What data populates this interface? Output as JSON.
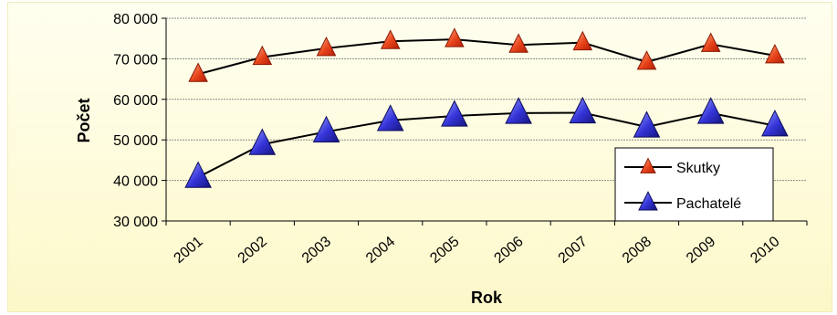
{
  "chart_data": {
    "type": "line",
    "title": "",
    "xlabel": "Rok",
    "ylabel": "Počet",
    "categories": [
      "2001",
      "2002",
      "2003",
      "2004",
      "2005",
      "2006",
      "2007",
      "2008",
      "2009",
      "2010"
    ],
    "ylim": [
      30000,
      80000
    ],
    "y_ticks": [
      30000,
      40000,
      50000,
      60000,
      70000,
      80000
    ],
    "y_tick_labels": [
      "30 000",
      "40 000",
      "50 000",
      "60 000",
      "70 000",
      "80 000"
    ],
    "grid": "horizontal",
    "legend_position": "right",
    "series": [
      {
        "name": "Skutky",
        "color": "#d62c0c",
        "marker": "triangle",
        "values": [
          66200,
          70400,
          72600,
          74300,
          74800,
          73400,
          74000,
          69200,
          73600,
          70800
        ]
      },
      {
        "name": "Pachatelé",
        "color": "#1f1fa8",
        "marker": "triangle",
        "values": [
          40800,
          48900,
          52000,
          54800,
          55900,
          56600,
          56700,
          53200,
          56600,
          53500
        ]
      }
    ]
  }
}
